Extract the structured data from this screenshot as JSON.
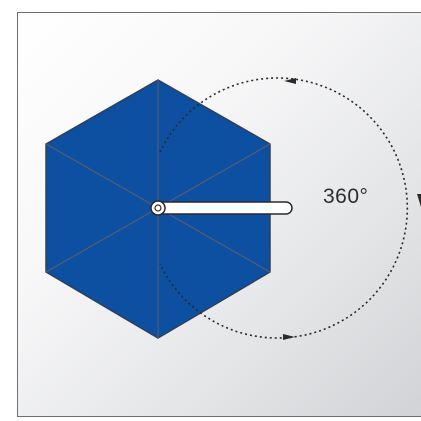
{
  "diagram": {
    "rotation_label": "360°",
    "canopy_color": "#0d4fa0",
    "canopy_rib_color": "#4a5a78",
    "arrow_color": "#2a2a2a",
    "pole_arm_color": "#ffffff",
    "frame_border_color": "#6e6e6e"
  }
}
